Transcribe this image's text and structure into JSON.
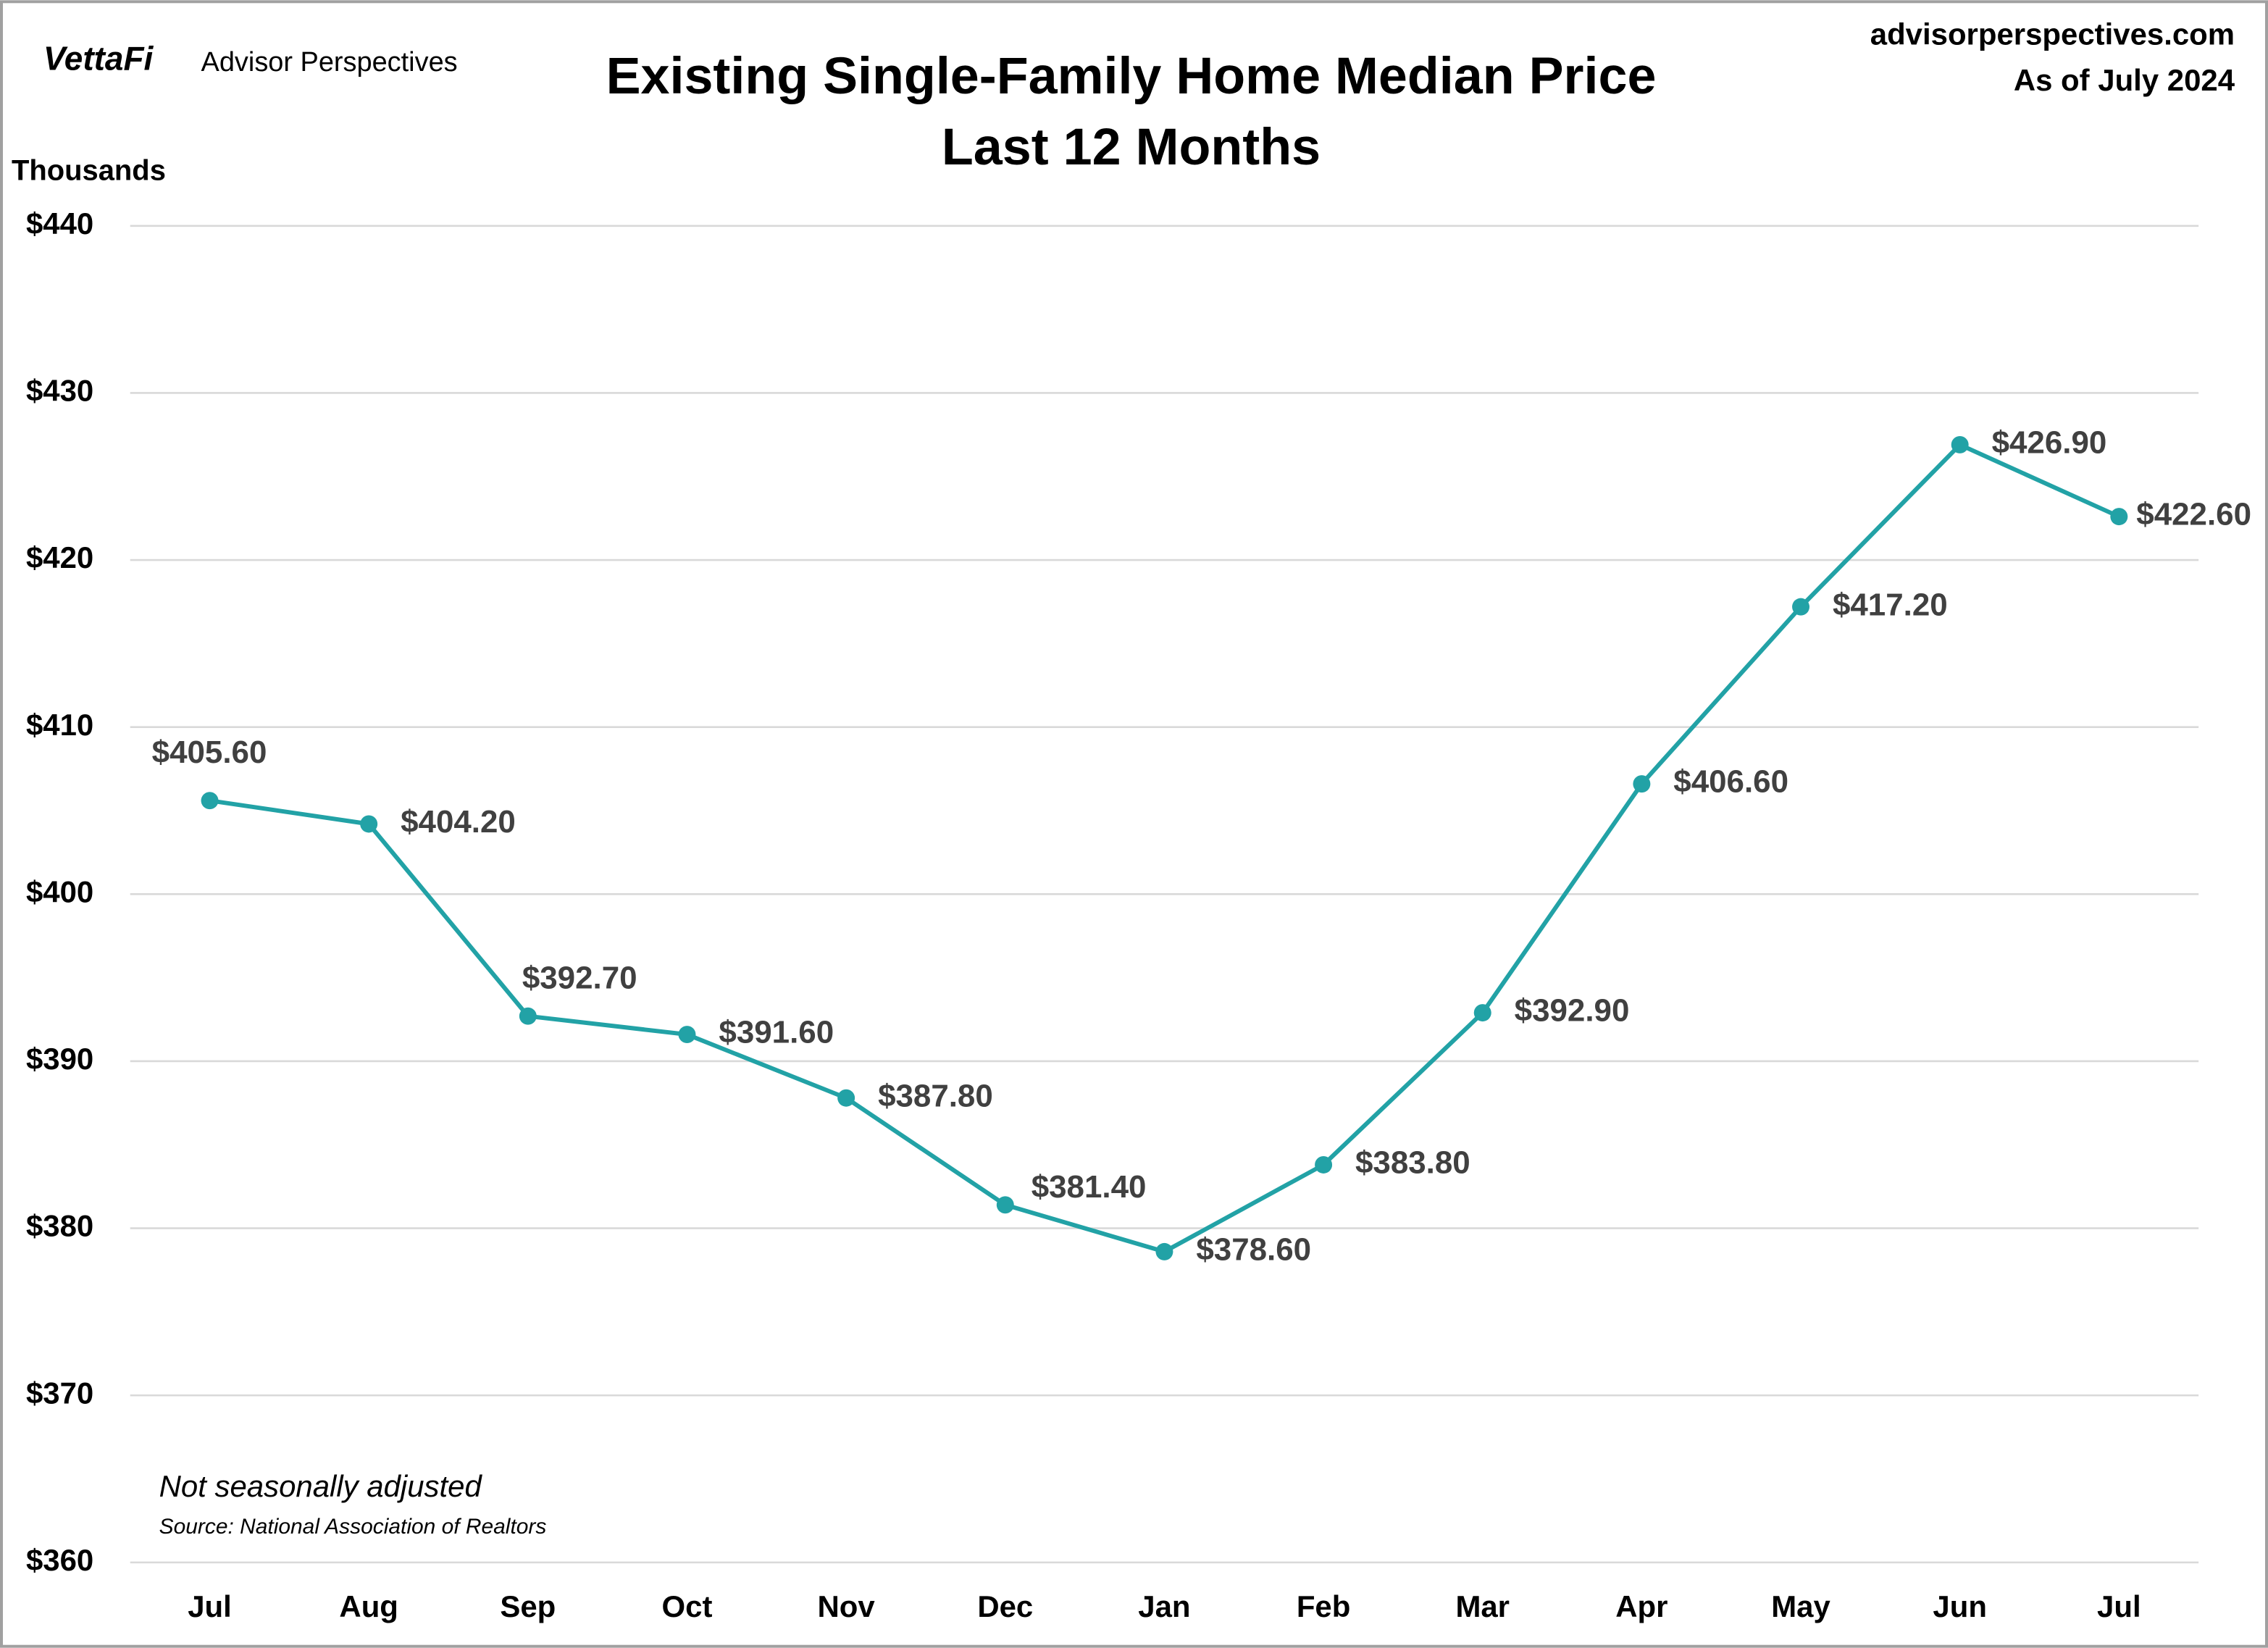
{
  "header": {
    "logo": "VettaFi",
    "brand": "Advisor Perspectives",
    "site": "advisorperspectives.com",
    "as_of": "As of July 2024"
  },
  "chart_data": {
    "type": "line",
    "title": "Existing Single-Family Home Median Price",
    "subtitle": "Last 12 Months",
    "y_label": "Thousands",
    "annotations": [
      "Not seasonally adjusted",
      "Source: National Association of Realtors"
    ],
    "categories": [
      "Jul",
      "Aug",
      "Sep",
      "Oct",
      "Nov",
      "Dec",
      "Jan",
      "Feb",
      "Mar",
      "Apr",
      "May",
      "Jun",
      "Jul"
    ],
    "series": [
      {
        "name": "Median Price",
        "color": "#22a2a6",
        "values": [
          405.6,
          404.2,
          392.7,
          391.6,
          387.8,
          381.4,
          378.6,
          383.8,
          392.9,
          406.6,
          417.2,
          426.9,
          422.6
        ],
        "value_labels": [
          "$405.60",
          "$404.20",
          "$392.70",
          "$391.60",
          "$387.80",
          "$381.40",
          "$378.60",
          "$383.80",
          "$392.90",
          "$406.60",
          "$417.20",
          "$426.90",
          "$422.60"
        ]
      }
    ],
    "ylim": [
      360,
      440
    ],
    "yticks": [
      {
        "value": 360,
        "label": "$360"
      },
      {
        "value": 370,
        "label": "$370"
      },
      {
        "value": 380,
        "label": "$380"
      },
      {
        "value": 390,
        "label": "$390"
      },
      {
        "value": 400,
        "label": "$400"
      },
      {
        "value": 410,
        "label": "$410"
      },
      {
        "value": 420,
        "label": "$420"
      },
      {
        "value": 430,
        "label": "$430"
      },
      {
        "value": 440,
        "label": "$440"
      }
    ],
    "grid": true
  }
}
